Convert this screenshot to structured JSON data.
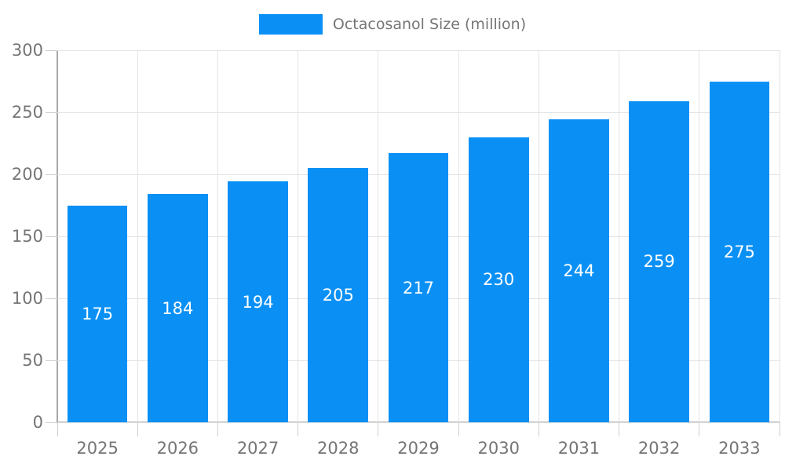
{
  "legend": {
    "label": "Octacosanol Size (million)"
  },
  "colors": {
    "bar": "#0a90f5",
    "grid": "#e4e4e4",
    "tick": "#cfcfcf",
    "axis": "#a8a8a8",
    "text": "#757575",
    "bar_label": "#ffffff",
    "background": "#ffffff"
  },
  "chart_data": {
    "type": "bar",
    "title": "",
    "series_name": "Octacosanol Size (million)",
    "categories": [
      "2025",
      "2026",
      "2027",
      "2028",
      "2029",
      "2030",
      "2031",
      "2032",
      "2033"
    ],
    "values": [
      175,
      184,
      194,
      205,
      217,
      230,
      244,
      259,
      275
    ],
    "xlabel": "",
    "ylabel": "",
    "ylim": [
      0,
      300
    ],
    "yticks": [
      0,
      50,
      100,
      150,
      200,
      250,
      300
    ],
    "grid": true,
    "legend_position": "top",
    "bar_label_position": "inside-center",
    "bar_width_fraction": 0.75
  }
}
